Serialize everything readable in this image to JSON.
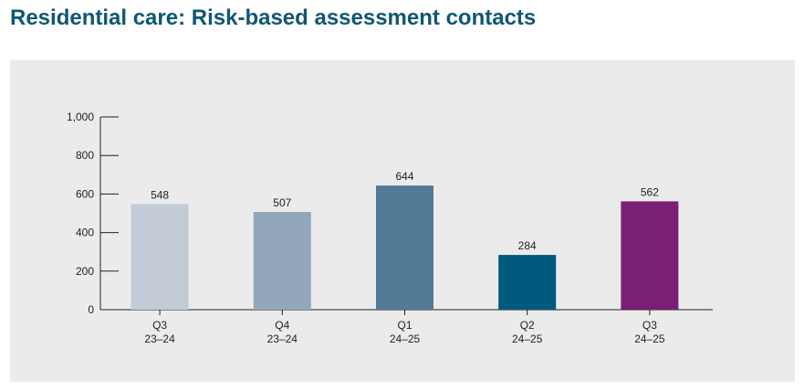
{
  "title": "Residential care: Risk-based assessment contacts",
  "chart_data": {
    "type": "bar",
    "title": "Residential care: Risk-based assessment contacts",
    "categories": [
      [
        "Q3",
        "23–24"
      ],
      [
        "Q4",
        "23–24"
      ],
      [
        "Q1",
        "24–25"
      ],
      [
        "Q2",
        "24–25"
      ],
      [
        "Q3",
        "24–25"
      ]
    ],
    "values": [
      548,
      507,
      644,
      284,
      562
    ],
    "data_labels": [
      "548",
      "507",
      "644",
      "284",
      "562"
    ],
    "colors": [
      "#c3cbd6",
      "#93a7bb",
      "#537a96",
      "#005a7d",
      "#7b1e75"
    ],
    "ylim": [
      0,
      1000
    ],
    "yticks": [
      0,
      200,
      400,
      600,
      800,
      1000
    ],
    "ytick_labels": [
      "0",
      "200",
      "400",
      "600",
      "800",
      "1,000"
    ],
    "xlabel": "",
    "ylabel": "",
    "grid": false,
    "legend": "none"
  },
  "colors": {
    "title": "#0f5775",
    "panel_background": "#ebebeb",
    "axis": "#222222"
  }
}
